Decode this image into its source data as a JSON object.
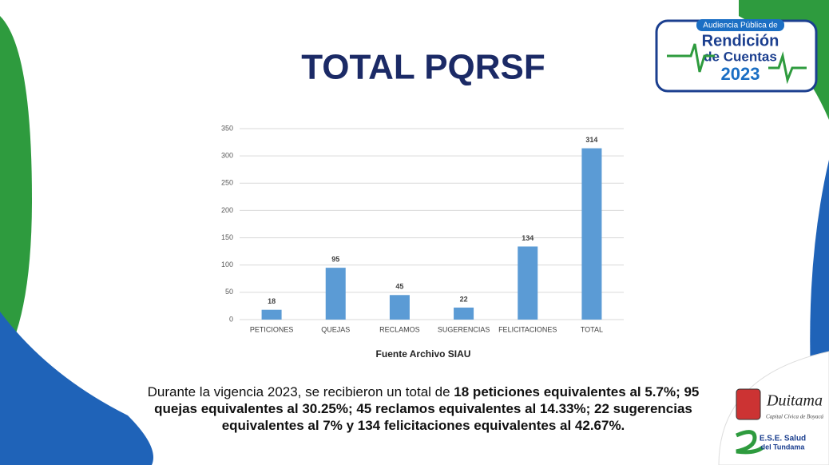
{
  "chart_data": {
    "type": "bar",
    "title": "TOTAL PQRSF",
    "source": "Fuente Archivo SIAU",
    "categories": [
      "PETICIONES",
      "QUEJAS",
      "RECLAMOS",
      "SUGERENCIAS",
      "FELICITACIONES",
      "TOTAL"
    ],
    "values": [
      18,
      95,
      45,
      22,
      134,
      314
    ],
    "color": "#5b9bd5",
    "ylim": [
      0,
      350
    ],
    "yticks": [
      0,
      50,
      100,
      150,
      200,
      250,
      300,
      350
    ],
    "grid": true
  },
  "summary": [
    {
      "text": "Durante la vigencia 2023, se recibieron un total de ",
      "bold": false
    },
    {
      "text": "18 peticiones equivalentes al 5.7%; 95 quejas equivalentes al 30.25%; 45 reclamos equivalentes al 14.33%; 22 sugerencias equivalentes al 7% y 134 felicitaciones equivalentes al 42.67%.",
      "bold": true
    }
  ],
  "event_logo": {
    "top": "Audiencia Pública de",
    "line1": "Rendición",
    "line2": "de Cuentas",
    "year": "2023"
  },
  "city_logo": {
    "name": "Duitama",
    "motto": "Capital Cívica de Boyacá"
  },
  "ese_logo": {
    "line1": "E.S.E. Salud",
    "line2": "del Tundama"
  }
}
